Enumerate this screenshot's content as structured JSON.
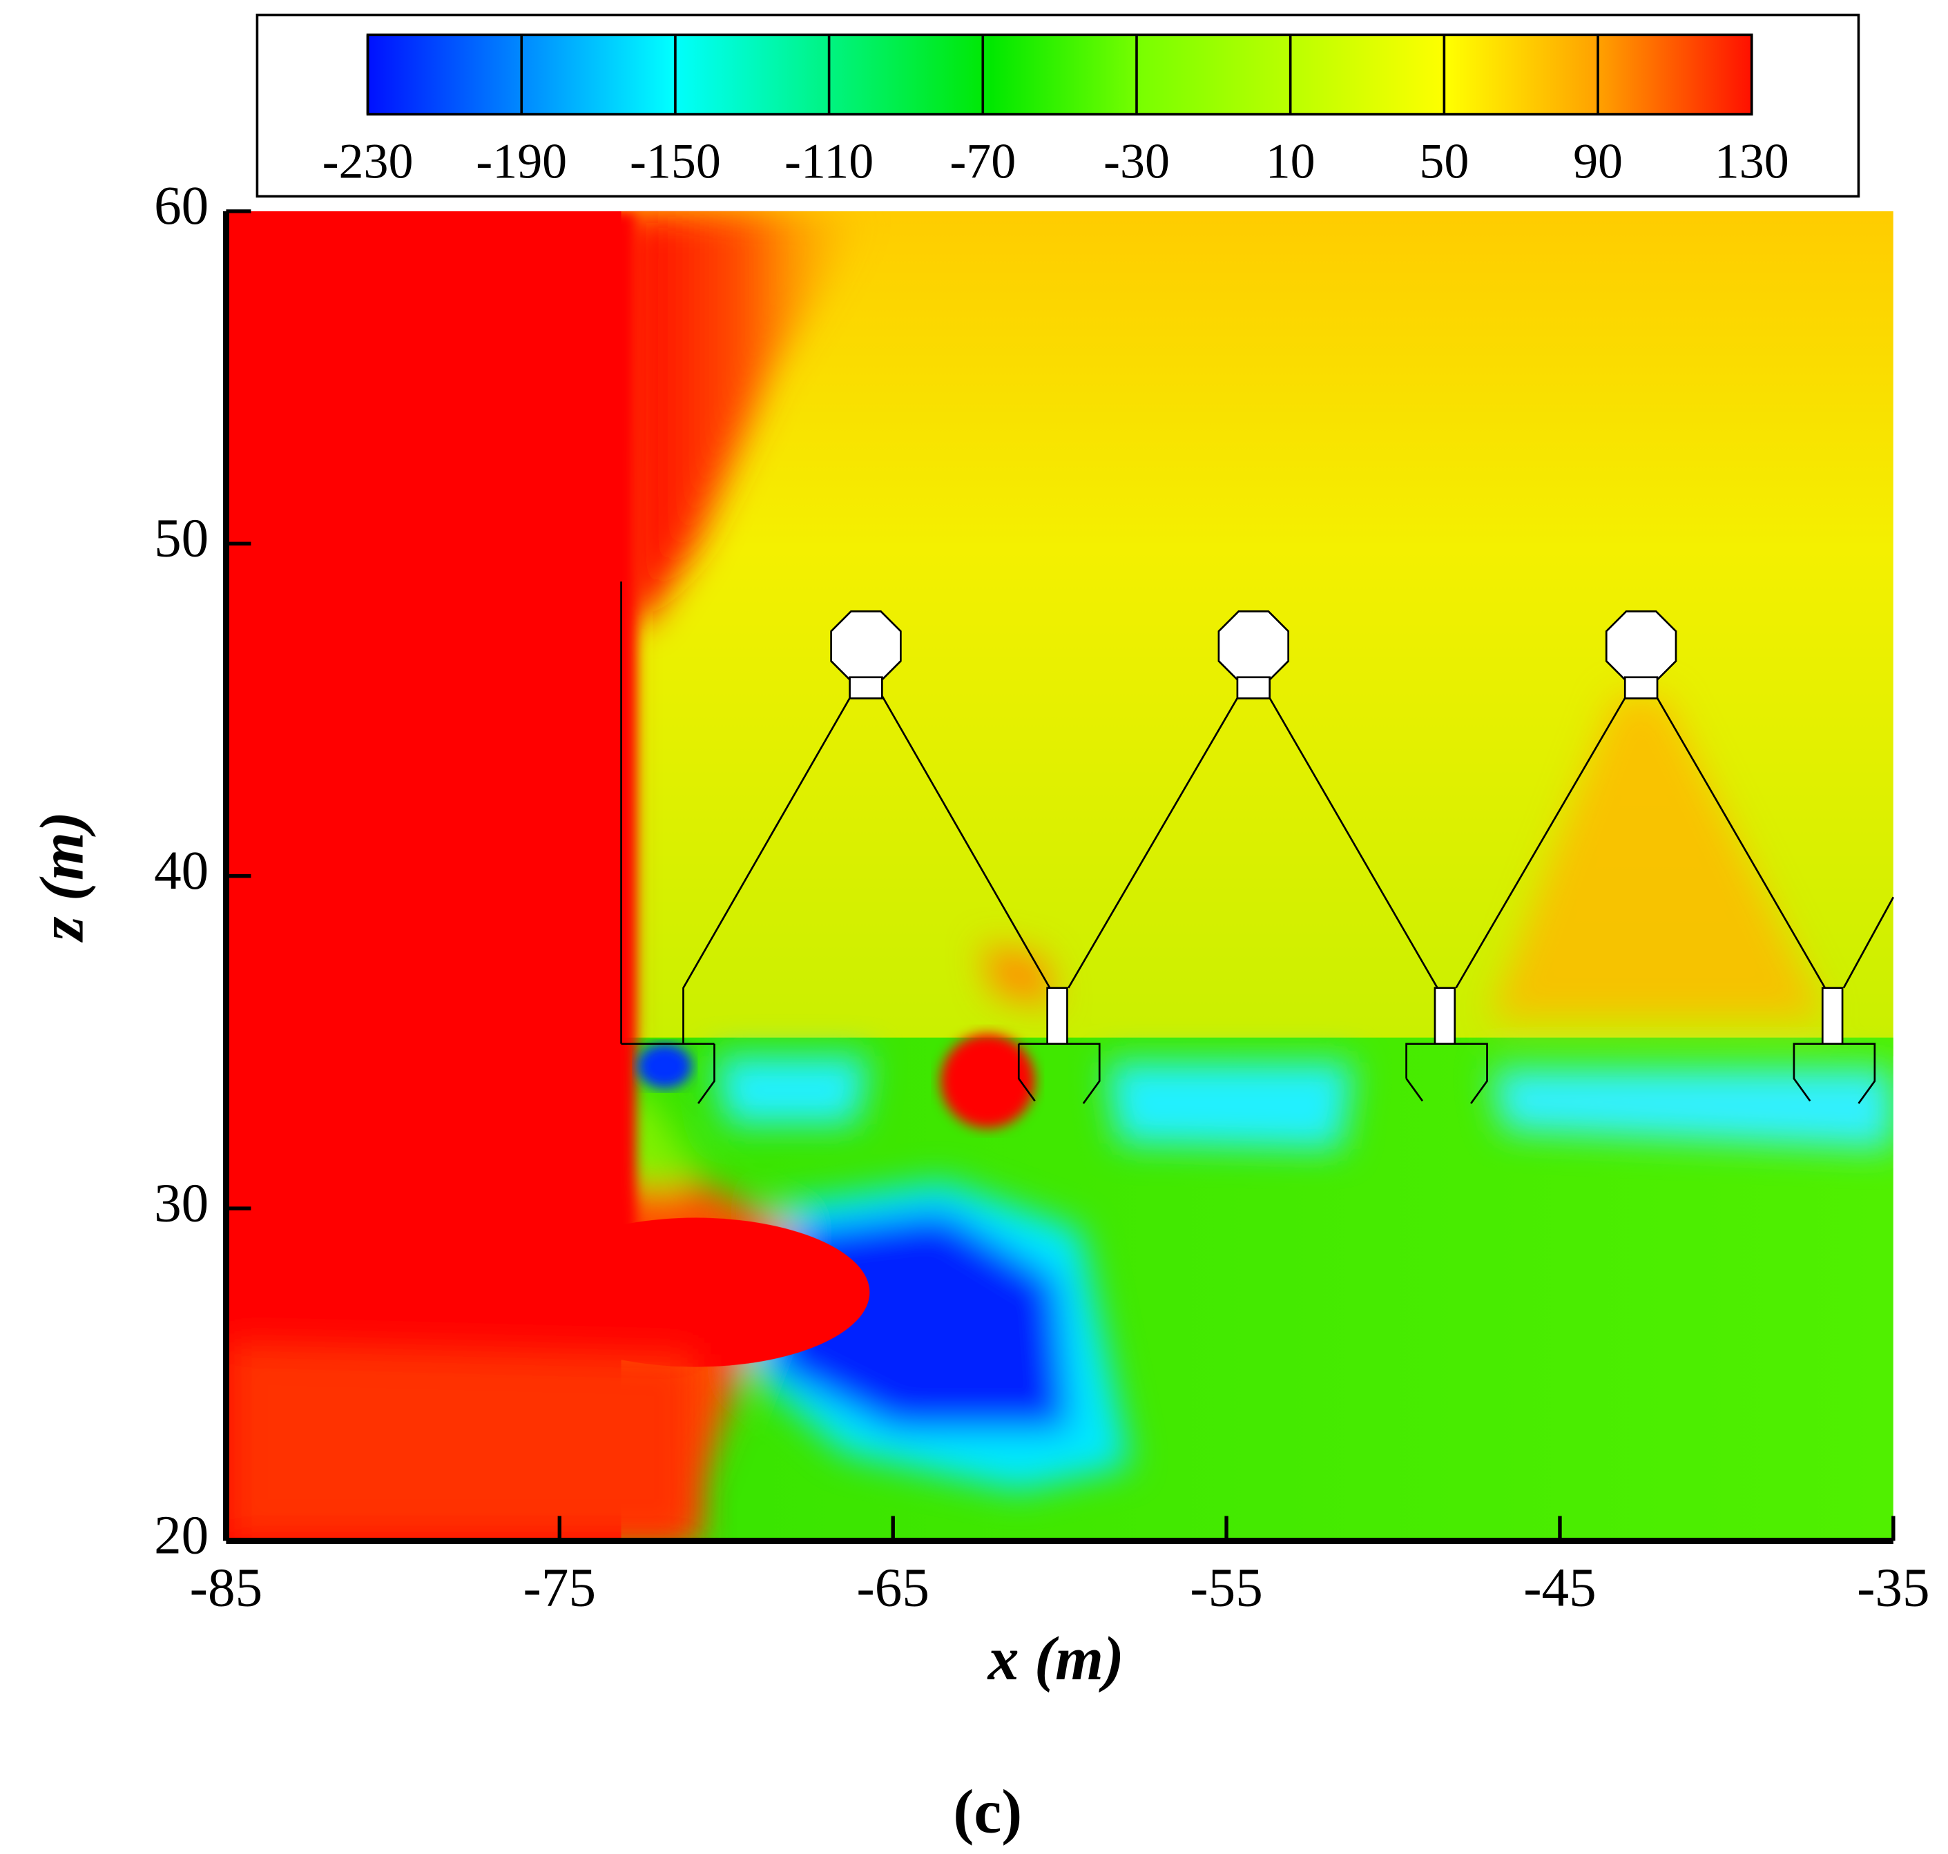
{
  "chart_data": {
    "type": "contour",
    "caption": "(c)",
    "xlabel": "x (m)",
    "ylabel": "z (m)",
    "xlim": [
      -85,
      -35
    ],
    "xticks": [
      -85,
      -75,
      -65,
      -55,
      -45,
      -35
    ],
    "ylim": [
      20,
      60
    ],
    "yticks": [
      20,
      30,
      40,
      50,
      60
    ],
    "colorbar": {
      "levels": [
        -230,
        -190,
        -150,
        -110,
        -70,
        -30,
        10,
        50,
        90,
        130
      ]
    }
  }
}
